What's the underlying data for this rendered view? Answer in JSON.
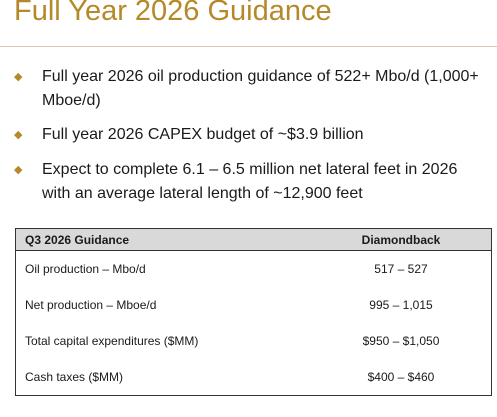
{
  "header": {
    "title": "Full Year 2026 Guidance"
  },
  "bullets": [
    "Full year 2026 oil production guidance of 522+ Mbo/d (1,000+ Mboe/d)",
    "Full year 2026 CAPEX budget of ~$3.9 billion",
    "Expect to complete 6.1 – 6.5 million net lateral feet in 2026 with an average lateral length of ~12,900 feet"
  ],
  "table": {
    "columns": [
      "Q3 2026 Guidance",
      "Diamondback"
    ],
    "rows": [
      [
        "Oil production – Mbo/d",
        "517 – 527"
      ],
      [
        "Net production – Mboe/d",
        "995 – 1,015"
      ],
      [
        "Total capital expenditures ($MM)",
        "$950 – $1,050"
      ],
      [
        "Cash taxes ($MM)",
        "$400 – $460"
      ]
    ]
  }
}
